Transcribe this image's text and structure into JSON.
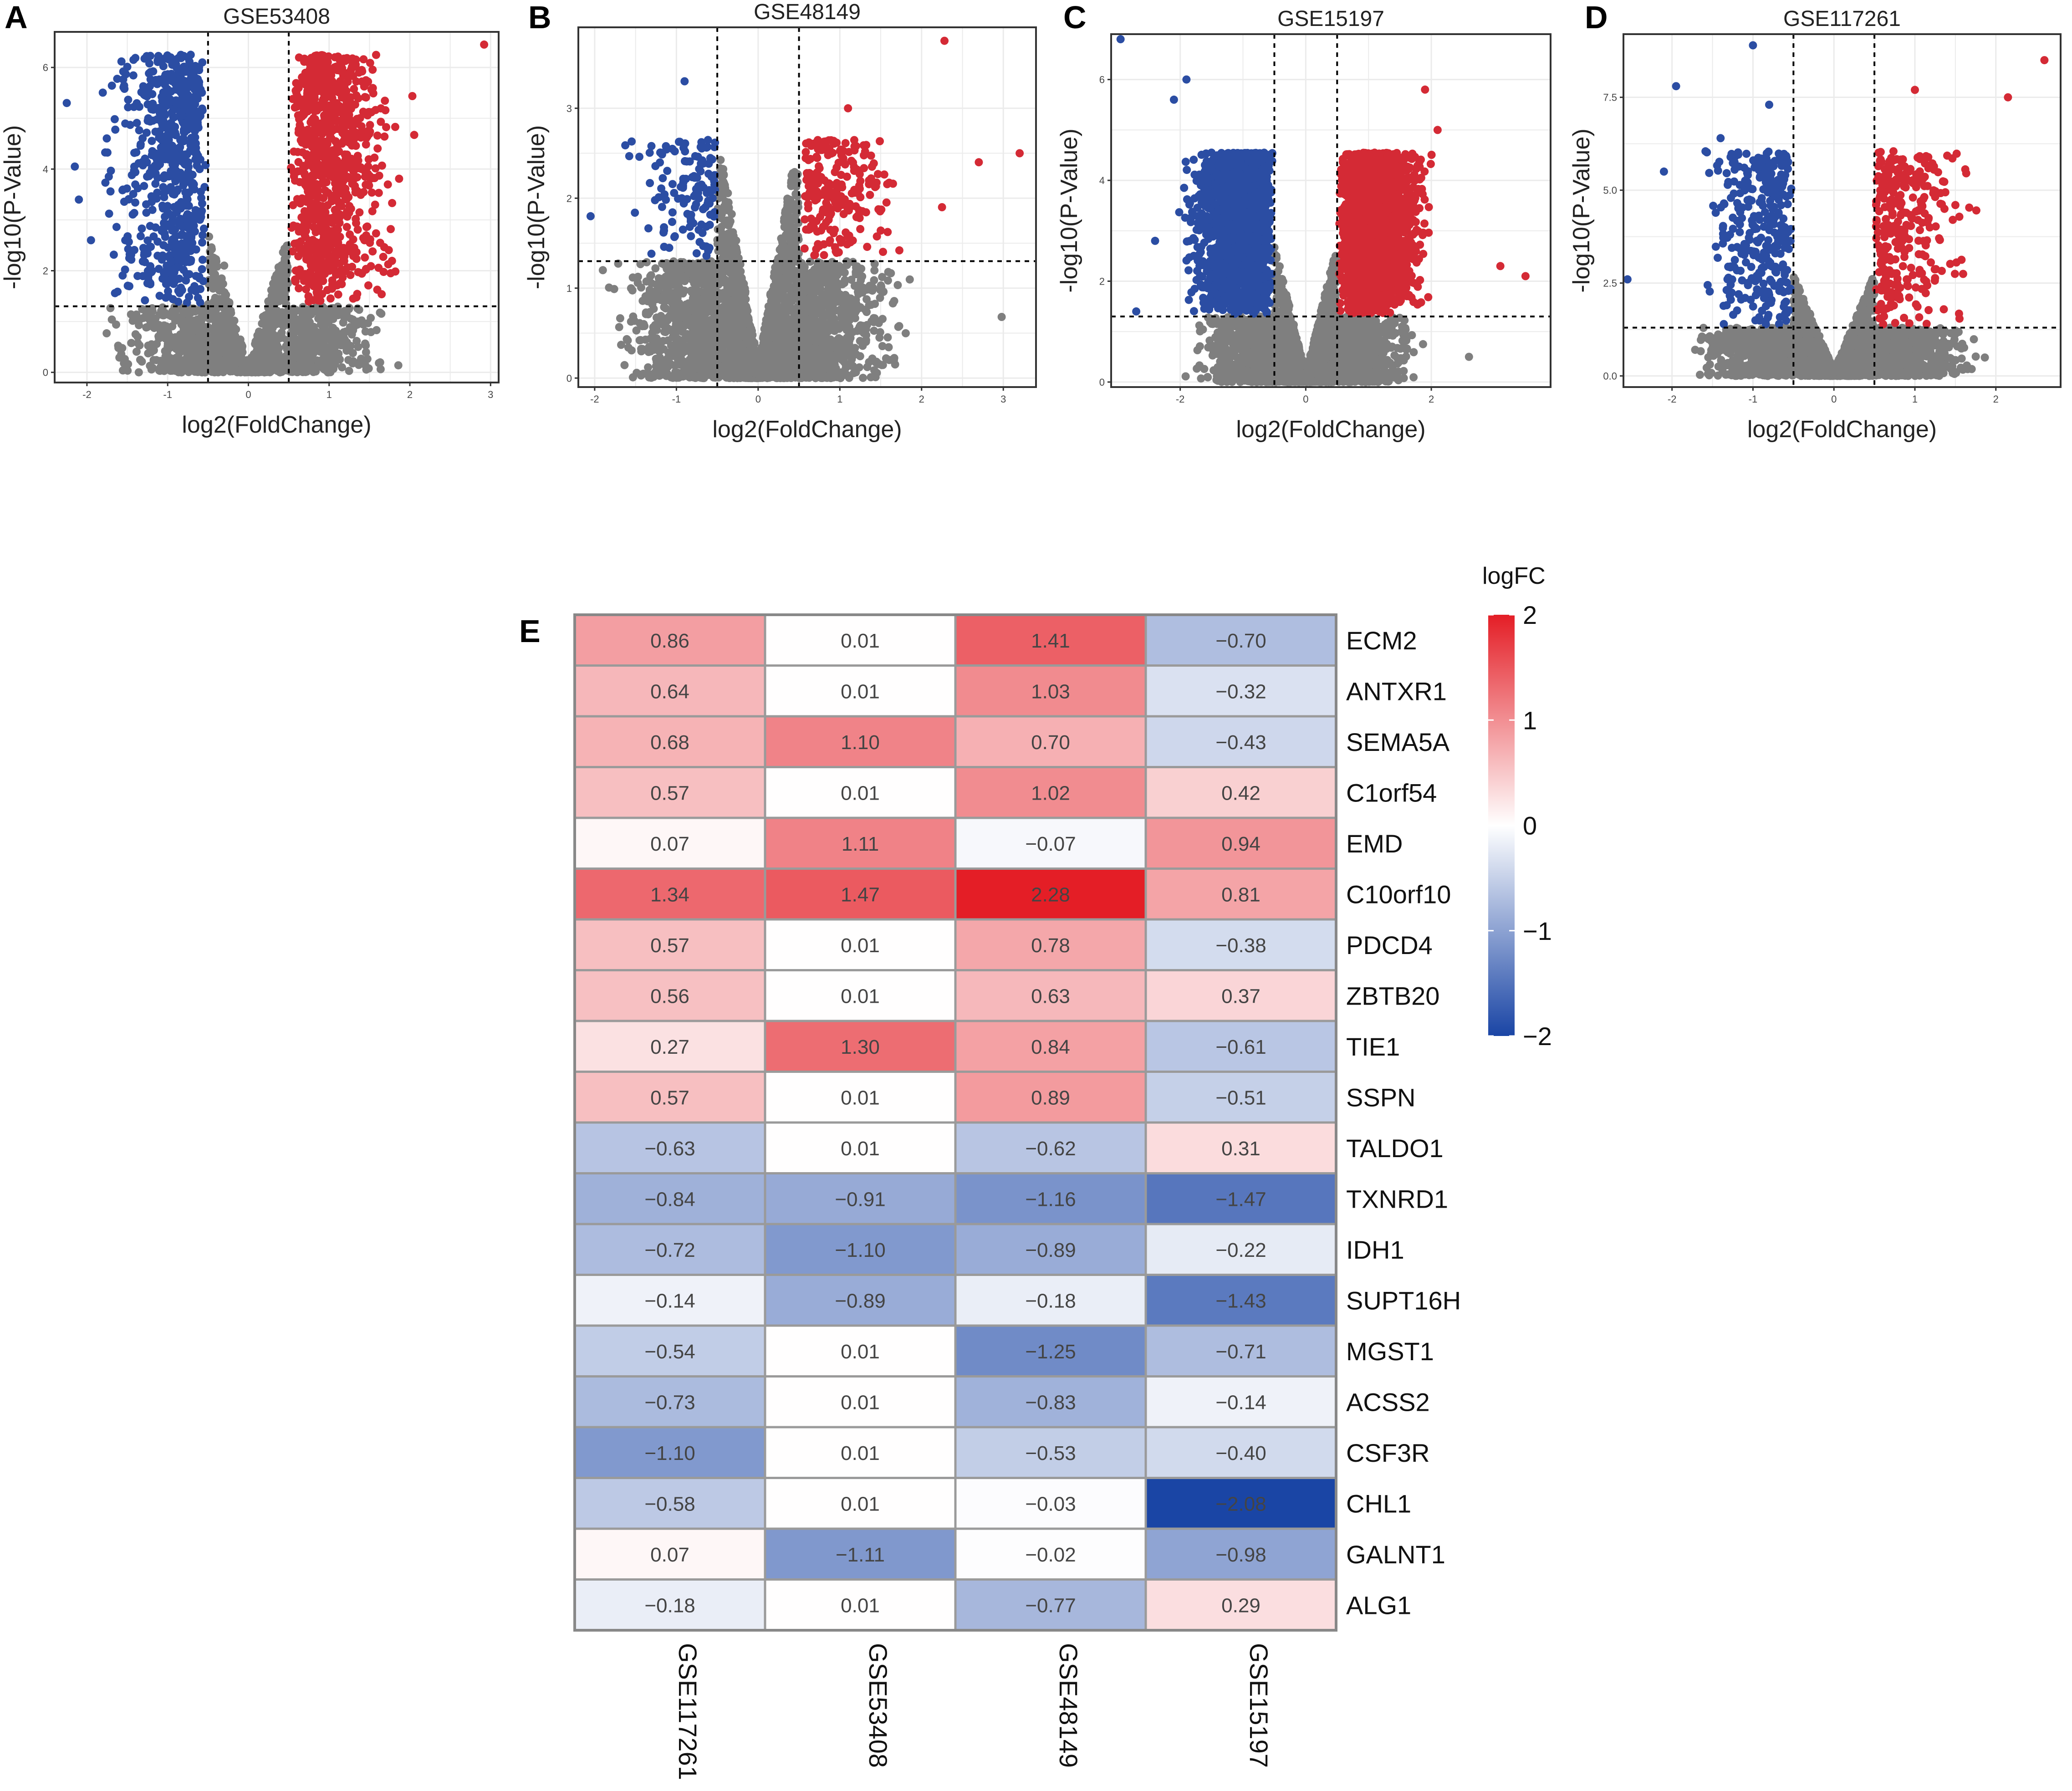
{
  "figure": {
    "panel_labels": [
      "A",
      "B",
      "C",
      "D",
      "E"
    ]
  },
  "colors": {
    "down": "#2b4da3",
    "up": "#d42a35",
    "ns": "#7f7f7f",
    "heat_low": "#1a45a5",
    "heat_mid": "#ffffff",
    "heat_high": "#e41e26",
    "cell_border": "#9a9a9a",
    "grid": "#ebebeb"
  },
  "chart_data": [
    {
      "type": "scatter",
      "panel": "A",
      "title": "GSE53408",
      "xlabel": "log2(FoldChange)",
      "ylabel": "-log10(P-Value)",
      "xlim": [
        -2.4,
        3.1
      ],
      "ylim": [
        -0.2,
        6.7
      ],
      "xticks": [
        -2,
        -1,
        0,
        1,
        2,
        3
      ],
      "xtick_labels": [
        "-2",
        "-1",
        "0",
        "1",
        "2",
        "3"
      ],
      "yticks": [
        0,
        2,
        4,
        6
      ],
      "ytick_labels": [
        "0",
        "2",
        "4",
        "6"
      ],
      "fc_cutoff": 0.5,
      "p_cutoff": 1.3,
      "seed": 11,
      "down_count": 650,
      "up_count": 900,
      "ns_count": 1400,
      "up_center": 1.05,
      "down_center": -0.95,
      "dense_top": 6.2,
      "notable_points": [
        [
          2.92,
          6.45
        ],
        [
          -2.25,
          5.3
        ],
        [
          -2.15,
          4.05
        ],
        [
          -2.1,
          3.4
        ],
        [
          -1.95,
          2.6
        ],
        [
          -0.4,
          1.0
        ],
        [
          0.1,
          0.1
        ],
        [
          1.05,
          1.05
        ],
        [
          0.45,
          1.4
        ],
        [
          -0.3,
          2.1
        ]
      ]
    },
    {
      "type": "scatter",
      "panel": "B",
      "title": "GSE48149",
      "xlabel": "log2(FoldChange)",
      "ylabel": "-log10(P-Value)",
      "xlim": [
        -2.2,
        3.4
      ],
      "ylim": [
        -0.1,
        3.9
      ],
      "xticks": [
        -2,
        -1,
        0,
        1,
        2,
        3
      ],
      "xtick_labels": [
        "-2",
        "-1",
        "0",
        "1",
        "2",
        "3"
      ],
      "yticks": [
        0,
        1,
        2,
        3
      ],
      "ytick_labels": [
        "0",
        "1",
        "2",
        "3"
      ],
      "fc_cutoff": 0.5,
      "p_cutoff": 1.3,
      "seed": 22,
      "down_count": 130,
      "up_count": 220,
      "ns_count": 3200,
      "up_center": 0.9,
      "down_center": -0.8,
      "dense_top": 2.6,
      "notable_points": [
        [
          2.28,
          3.75
        ],
        [
          3.2,
          2.5
        ],
        [
          2.7,
          2.4
        ],
        [
          1.1,
          3.0
        ],
        [
          2.25,
          1.9
        ],
        [
          -2.05,
          1.8
        ],
        [
          -0.9,
          3.3
        ],
        [
          2.98,
          0.68
        ],
        [
          -1.4,
          0.6
        ],
        [
          -1.9,
          1.2
        ]
      ]
    },
    {
      "type": "scatter",
      "panel": "C",
      "title": "GSE15197",
      "xlabel": "log2(FoldChange)",
      "ylabel": "-log10(P-Value)",
      "xlim": [
        -3.1,
        3.9
      ],
      "ylim": [
        -0.1,
        6.9
      ],
      "xticks": [
        -2,
        0,
        2
      ],
      "xtick_labels": [
        "-2",
        "0",
        "2"
      ],
      "yticks": [
        0,
        2,
        4,
        6
      ],
      "ytick_labels": [
        "0",
        "2",
        "4",
        "6"
      ],
      "fc_cutoff": 0.5,
      "p_cutoff": 1.3,
      "seed": 33,
      "down_count": 1900,
      "up_count": 2200,
      "ns_count": 3000,
      "up_center": 1.2,
      "down_center": -1.1,
      "dense_top": 4.5,
      "notable_points": [
        [
          -2.95,
          6.8
        ],
        [
          -1.9,
          6.0
        ],
        [
          -2.1,
          5.6
        ],
        [
          1.9,
          5.8
        ],
        [
          2.1,
          5.0
        ],
        [
          3.1,
          2.3
        ],
        [
          3.5,
          2.1
        ],
        [
          2.6,
          0.5
        ],
        [
          -2.7,
          1.4
        ],
        [
          -2.4,
          2.8
        ]
      ]
    },
    {
      "type": "scatter",
      "panel": "D",
      "title": "GSE117261",
      "xlabel": "log2(FoldChange)",
      "ylabel": "-log10(P-Value)",
      "xlim": [
        -2.6,
        2.8
      ],
      "ylim": [
        -0.3,
        9.2
      ],
      "xticks": [
        -2,
        -1,
        0,
        1,
        2
      ],
      "xtick_labels": [
        "-2",
        "-1",
        "0",
        "1",
        "2"
      ],
      "yticks": [
        0,
        2.5,
        5,
        7.5
      ],
      "ytick_labels": [
        "0.0",
        "2.5",
        "5.0",
        "7.5"
      ],
      "fc_cutoff": 0.5,
      "p_cutoff": 1.3,
      "seed": 44,
      "down_count": 330,
      "up_count": 300,
      "ns_count": 2800,
      "up_center": 0.8,
      "down_center": -0.85,
      "dense_top": 6.0,
      "notable_points": [
        [
          2.6,
          8.5
        ],
        [
          2.15,
          7.5
        ],
        [
          -1.0,
          8.9
        ],
        [
          -2.55,
          2.6
        ],
        [
          -2.1,
          5.5
        ],
        [
          -1.95,
          7.8
        ],
        [
          1.0,
          7.7
        ],
        [
          1.5,
          4.6
        ],
        [
          -1.4,
          6.4
        ],
        [
          -0.8,
          7.3
        ]
      ]
    },
    {
      "type": "heatmap",
      "panel": "E",
      "legend_title": "logFC",
      "legend_ticks": [
        2,
        1,
        0,
        -1,
        -2
      ],
      "legend_tick_labels": [
        "2",
        "1",
        "0",
        "−1",
        "−2"
      ],
      "zlim": [
        -2,
        2
      ],
      "columns": [
        "GSE117261",
        "GSE53408",
        "GSE48149",
        "GSE15197"
      ],
      "rows": [
        "ECM2",
        "ANTXR1",
        "SEMA5A",
        "C1orf54",
        "EMD",
        "C10orf10",
        "PDCD4",
        "ZBTB20",
        "TIE1",
        "SSPN",
        "TALDO1",
        "TXNRD1",
        "IDH1",
        "SUPT16H",
        "MGST1",
        "ACSS2",
        "CSF3R",
        "CHL1",
        "GALNT1",
        "ALG1"
      ],
      "values": [
        [
          0.86,
          0.01,
          1.41,
          -0.7
        ],
        [
          0.64,
          0.01,
          1.03,
          -0.32
        ],
        [
          0.68,
          1.1,
          0.7,
          -0.43
        ],
        [
          0.57,
          0.01,
          1.02,
          0.42
        ],
        [
          0.07,
          1.11,
          -0.07,
          0.94
        ],
        [
          1.34,
          1.47,
          2.28,
          0.81
        ],
        [
          0.57,
          0.01,
          0.78,
          -0.38
        ],
        [
          0.56,
          0.01,
          0.63,
          0.37
        ],
        [
          0.27,
          1.3,
          0.84,
          -0.61
        ],
        [
          0.57,
          0.01,
          0.89,
          -0.51
        ],
        [
          -0.63,
          0.01,
          -0.62,
          0.31
        ],
        [
          -0.84,
          -0.91,
          -1.16,
          -1.47
        ],
        [
          -0.72,
          -1.1,
          -0.89,
          -0.22
        ],
        [
          -0.14,
          -0.89,
          -0.18,
          -1.43
        ],
        [
          -0.54,
          0.01,
          -1.25,
          -0.71
        ],
        [
          -0.73,
          0.01,
          -0.83,
          -0.14
        ],
        [
          -1.1,
          0.01,
          -0.53,
          -0.4
        ],
        [
          -0.58,
          0.01,
          -0.03,
          -2.08
        ],
        [
          0.07,
          -1.11,
          -0.02,
          -0.98
        ],
        [
          -0.18,
          0.01,
          -0.77,
          0.29
        ]
      ],
      "cell_labels": [
        [
          "0.86",
          "0.01",
          "1.41",
          "−0.70"
        ],
        [
          "0.64",
          "0.01",
          "1.03",
          "−0.32"
        ],
        [
          "0.68",
          "1.10",
          "0.70",
          "−0.43"
        ],
        [
          "0.57",
          "0.01",
          "1.02",
          "0.42"
        ],
        [
          "0.07",
          "1.11",
          "−0.07",
          "0.94"
        ],
        [
          "1.34",
          "1.47",
          "2.28",
          "0.81"
        ],
        [
          "0.57",
          "0.01",
          "0.78",
          "−0.38"
        ],
        [
          "0.56",
          "0.01",
          "0.63",
          "0.37"
        ],
        [
          "0.27",
          "1.30",
          "0.84",
          "−0.61"
        ],
        [
          "0.57",
          "0.01",
          "0.89",
          "−0.51"
        ],
        [
          "−0.63",
          "0.01",
          "−0.62",
          "0.31"
        ],
        [
          "−0.84",
          "−0.91",
          "−1.16",
          "−1.47"
        ],
        [
          "−0.72",
          "−1.10",
          "−0.89",
          "−0.22"
        ],
        [
          "−0.14",
          "−0.89",
          "−0.18",
          "−1.43"
        ],
        [
          "−0.54",
          "0.01",
          "−1.25",
          "−0.71"
        ],
        [
          "−0.73",
          "0.01",
          "−0.83",
          "−0.14"
        ],
        [
          "−1.10",
          "0.01",
          "−0.53",
          "−0.40"
        ],
        [
          "−0.58",
          "0.01",
          "−0.03",
          "−2.08"
        ],
        [
          "0.07",
          "−1.11",
          "−0.02",
          "−0.98"
        ],
        [
          "−0.18",
          "0.01",
          "−0.77",
          "0.29"
        ]
      ]
    }
  ]
}
